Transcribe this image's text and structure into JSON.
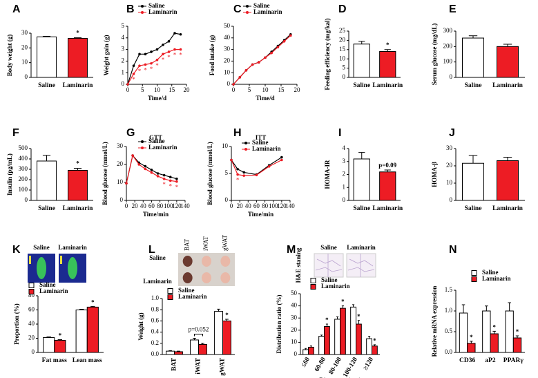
{
  "chart_data": [
    {
      "panel": "A",
      "type": "bar",
      "ylabel": "Body weight (g)",
      "categories": [
        "Saline",
        "Laminarin"
      ],
      "values": [
        27.5,
        26.5
      ],
      "errors": [
        0.4,
        0.4
      ],
      "colors": [
        "#ffffff",
        "#ed1c24"
      ],
      "significance": [
        null,
        "*"
      ],
      "ylim": [
        0,
        30
      ],
      "yticks": [
        0,
        10,
        20,
        30
      ]
    },
    {
      "panel": "B",
      "type": "line",
      "xlabel": "Time/d",
      "ylabel": "Weight gain (g)",
      "x": [
        0,
        2,
        4,
        6,
        8,
        10,
        12,
        14,
        16,
        18
      ],
      "series": [
        {
          "name": "Saline",
          "color": "#000000",
          "values": [
            0,
            1.6,
            2.6,
            2.6,
            2.8,
            3.0,
            3.4,
            3.7,
            4.4,
            4.3
          ]
        },
        {
          "name": "Laminarin",
          "color": "#ed1c24",
          "values": [
            0,
            0.9,
            1.6,
            1.7,
            1.8,
            2.1,
            2.6,
            2.8,
            3.0,
            3.0
          ],
          "significance": [
            null,
            "*",
            "*",
            "*",
            "*",
            "*",
            "*",
            "*",
            "*",
            "*"
          ]
        }
      ],
      "xlim": [
        0,
        20
      ],
      "xticks": [
        0,
        5,
        10,
        15,
        20
      ],
      "ylim": [
        0,
        5
      ],
      "yticks": [
        0,
        1,
        2,
        3,
        4,
        5
      ]
    },
    {
      "panel": "C",
      "type": "line",
      "xlabel": "Time/d",
      "ylabel": "Food intake (g)",
      "x": [
        0,
        2,
        4,
        6,
        8,
        10,
        12,
        14,
        16,
        18
      ],
      "series": [
        {
          "name": "Saline",
          "color": "#000000",
          "values": [
            0,
            6,
            12,
            17,
            19,
            23,
            28,
            33,
            38,
            43
          ]
        },
        {
          "name": "Laminarin",
          "color": "#ed1c24",
          "values": [
            0,
            6,
            12,
            17,
            19,
            23,
            27,
            32,
            37,
            42
          ]
        }
      ],
      "xlim": [
        0,
        20
      ],
      "xticks": [
        0,
        5,
        10,
        15,
        20
      ],
      "ylim": [
        0,
        50
      ],
      "yticks": [
        0,
        10,
        20,
        30,
        40,
        50
      ]
    },
    {
      "panel": "D",
      "type": "bar",
      "ylabel": "Feeding efficiency (mg/kal)",
      "categories": [
        "Saline",
        "Laminarin"
      ],
      "values": [
        18,
        14
      ],
      "errors": [
        1.5,
        1
      ],
      "colors": [
        "#ffffff",
        "#ed1c24"
      ],
      "significance": [
        null,
        "*"
      ],
      "ylim": [
        0,
        25
      ],
      "yticks": [
        0,
        5,
        10,
        15,
        20,
        25
      ]
    },
    {
      "panel": "E",
      "type": "bar",
      "ylabel": "Serum glucose (mg/dL)",
      "categories": [
        "Saline",
        "Laminarin"
      ],
      "values": [
        255,
        200
      ],
      "errors": [
        15,
        15
      ],
      "colors": [
        "#ffffff",
        "#ed1c24"
      ],
      "ylim": [
        0,
        300
      ],
      "yticks": [
        0,
        100,
        200,
        300
      ]
    },
    {
      "panel": "F",
      "type": "bar",
      "ylabel": "Insulin (pg/mL)",
      "categories": [
        "Saline",
        "Laminarin"
      ],
      "values": [
        380,
        290
      ],
      "errors": [
        55,
        20
      ],
      "colors": [
        "#ffffff",
        "#ed1c24"
      ],
      "significance": [
        null,
        "*"
      ],
      "ylim": [
        0,
        500
      ],
      "yticks": [
        0,
        100,
        200,
        300,
        400,
        500
      ]
    },
    {
      "panel": "G",
      "type": "line",
      "title": "GTT",
      "xlabel": "Time/min",
      "ylabel": "Blood glucose (mmol/L)",
      "x": [
        0,
        15,
        30,
        45,
        60,
        75,
        90,
        105,
        120
      ],
      "series": [
        {
          "name": "Saline",
          "color": "#000000",
          "values": [
            9.5,
            25,
            21,
            19,
            17,
            15,
            14,
            13,
            12
          ]
        },
        {
          "name": "Laminarin",
          "color": "#ed1c24",
          "values": [
            9.5,
            25,
            20,
            17.5,
            15.5,
            13.5,
            12,
            11,
            10.5
          ],
          "significance": [
            null,
            null,
            null,
            null,
            null,
            null,
            "*",
            "*",
            "*"
          ]
        }
      ],
      "xlim": [
        0,
        140
      ],
      "xticks": [
        0,
        20,
        40,
        60,
        80,
        100,
        120,
        140
      ],
      "ylim": [
        0,
        30
      ],
      "yticks": [
        0,
        10,
        20,
        30
      ]
    },
    {
      "panel": "H",
      "type": "line",
      "title": "ITT",
      "xlabel": "Time/min",
      "ylabel": "Blood glucose (mmol/L)",
      "x": [
        0,
        15,
        30,
        60,
        90,
        120
      ],
      "series": [
        {
          "name": "Saline",
          "color": "#000000",
          "values": [
            7.5,
            5.8,
            5.2,
            4.8,
            6.5,
            8.0
          ]
        },
        {
          "name": "Laminarin",
          "color": "#ed1c24",
          "values": [
            7.5,
            4.8,
            4.6,
            4.7,
            6.3,
            7.5
          ],
          "significance": [
            null,
            "*",
            null,
            null,
            null,
            null
          ]
        }
      ],
      "xlim": [
        0,
        140
      ],
      "xticks": [
        0,
        20,
        40,
        60,
        80,
        100,
        120,
        140
      ],
      "ylim": [
        0,
        10
      ],
      "yticks": [
        0,
        5,
        10
      ]
    },
    {
      "panel": "I",
      "type": "bar",
      "ylabel": "HOMA-IR",
      "categories": [
        "Saline",
        "Laminarin"
      ],
      "values": [
        3.2,
        2.2
      ],
      "errors": [
        0.5,
        0.15
      ],
      "colors": [
        "#ffffff",
        "#ed1c24"
      ],
      "significance": [
        null,
        "p=0.09"
      ],
      "ylim": [
        0,
        4
      ],
      "yticks": [
        0,
        1,
        2,
        3,
        4
      ]
    },
    {
      "panel": "J",
      "type": "bar",
      "ylabel": "HOMA-β",
      "categories": [
        "Saline",
        "Laminarin"
      ],
      "values": [
        21.5,
        23
      ],
      "errors": [
        4.5,
        2
      ],
      "colors": [
        "#ffffff",
        "#ed1c24"
      ],
      "ylim": [
        0,
        30
      ],
      "yticks": [
        0,
        10,
        20,
        30
      ]
    },
    {
      "panel": "K",
      "type": "bar",
      "ylabel": "Proportion (%)",
      "image_labels": [
        "Saline",
        "Laminarin"
      ],
      "categories": [
        "Fat mass",
        "Lean mass"
      ],
      "series": [
        {
          "name": "Saline",
          "color": "#ffffff",
          "values": [
            21,
            60
          ],
          "errors": [
            1,
            1
          ]
        },
        {
          "name": "Laminarin",
          "color": "#ed1c24",
          "values": [
            17,
            64
          ],
          "errors": [
            1,
            1
          ],
          "significance": [
            "*",
            "*"
          ]
        }
      ],
      "ylim": [
        0,
        80
      ],
      "yticks": [
        0,
        20,
        40,
        60,
        80
      ]
    },
    {
      "panel": "L",
      "type": "bar",
      "ylabel": "Weight (g)",
      "image_labels": {
        "columns": [
          "BAT",
          "iWAT",
          "gWAT"
        ],
        "rows": [
          "Saline",
          "Laminarin"
        ]
      },
      "categories": [
        "BAT",
        "iWAT",
        "gWAT"
      ],
      "series": [
        {
          "name": "Saline",
          "color": "#ffffff",
          "values": [
            0.06,
            0.26,
            0.77
          ],
          "errors": [
            0.01,
            0.03,
            0.04
          ]
        },
        {
          "name": "Laminarin",
          "color": "#ed1c24",
          "values": [
            0.05,
            0.18,
            0.6
          ],
          "errors": [
            0.01,
            0.02,
            0.03
          ],
          "significance": [
            null,
            "p=0.052",
            "*"
          ]
        }
      ],
      "ylim": [
        0,
        1
      ],
      "yticks": [
        {
          "value": 0,
          "label": "0.0"
        },
        0.2,
        0.4,
        0.6,
        0.8,
        {
          "value": 1,
          "label": "1.0"
        }
      ]
    },
    {
      "panel": "M",
      "type": "bar",
      "ylabel": "Distribution ratio (%)",
      "xlabel": "Diameters (μm)",
      "image_labels": [
        "Saline",
        "Laminarin"
      ],
      "image_side_label": "H&E staning",
      "categories": [
        "≤60",
        "60-80",
        "80-100",
        "100-120",
        "≥120"
      ],
      "series": [
        {
          "name": "Saline",
          "color": "#ffffff",
          "values": [
            4,
            15,
            29,
            39,
            13
          ],
          "errors": [
            1,
            1,
            2,
            2,
            2
          ]
        },
        {
          "name": "Laminarin",
          "color": "#ed1c24",
          "values": [
            6,
            23,
            38,
            25,
            7
          ],
          "errors": [
            1,
            2,
            2,
            3,
            1
          ],
          "significance": [
            null,
            "*",
            "*",
            "*",
            "*"
          ]
        }
      ],
      "ylim": [
        0,
        50
      ],
      "yticks": [
        0,
        10,
        20,
        30,
        40,
        50
      ]
    },
    {
      "panel": "N",
      "type": "bar",
      "ylabel": "Relative mRNA expression",
      "categories": [
        "CD36",
        "aP2",
        "PPARγ"
      ],
      "series": [
        {
          "name": "Saline",
          "color": "#ffffff",
          "values": [
            0.95,
            1.0,
            1.0
          ],
          "errors": [
            0.2,
            0.12,
            0.2
          ]
        },
        {
          "name": "Laminarin",
          "color": "#ed1c24",
          "values": [
            0.22,
            0.45,
            0.35
          ],
          "errors": [
            0.05,
            0.06,
            0.05
          ],
          "significance": [
            "*",
            "*",
            "*"
          ]
        }
      ],
      "ylim": [
        0,
        1.5
      ],
      "yticks": [
        {
          "value": 0,
          "label": "0.0"
        },
        0.5,
        {
          "value": 1,
          "label": "1.0"
        },
        1.5
      ]
    }
  ]
}
